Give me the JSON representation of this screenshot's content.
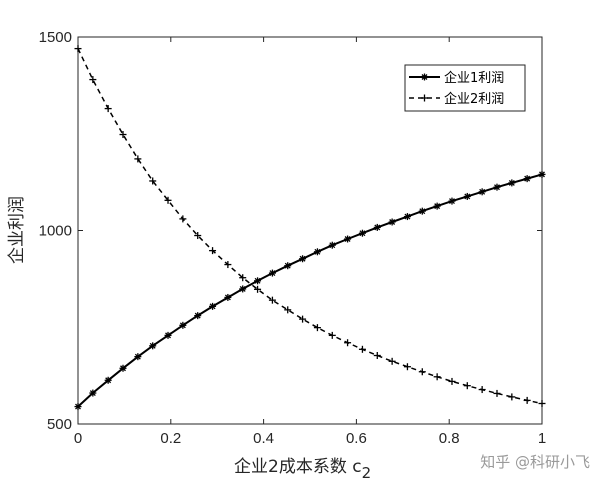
{
  "chart_data": {
    "type": "line",
    "xlabel": "企业2成本系数 c",
    "xlabel_subscript": "2",
    "ylabel": "企业利润",
    "xlim": [
      0,
      1
    ],
    "ylim": [
      500,
      1500
    ],
    "xticks": [
      0,
      0.2,
      0.4,
      0.6,
      0.8,
      1
    ],
    "xtick_labels": [
      "0",
      "0.2",
      "0.4",
      "0.6",
      "0.8",
      "1"
    ],
    "yticks": [
      500,
      1000,
      1500
    ],
    "ytick_labels": [
      "500",
      "1000",
      "1500"
    ],
    "legend_position": "top-right",
    "grid": false,
    "series": [
      {
        "name": "企业1利润",
        "style": "solid",
        "marker": "asterisk",
        "x": [
          0,
          0.032,
          0.065,
          0.097,
          0.129,
          0.161,
          0.194,
          0.226,
          0.258,
          0.29,
          0.323,
          0.355,
          0.387,
          0.419,
          0.452,
          0.484,
          0.516,
          0.548,
          0.581,
          0.613,
          0.645,
          0.677,
          0.71,
          0.742,
          0.774,
          0.806,
          0.839,
          0.871,
          0.903,
          0.935,
          0.968,
          1
        ],
        "y": [
          545,
          580,
          613,
          644,
          674,
          702,
          729,
          755,
          780,
          804,
          827,
          849,
          870,
          890,
          909,
          927,
          945,
          962,
          978,
          993,
          1008,
          1022,
          1036,
          1050,
          1063,
          1076,
          1088,
          1100,
          1112,
          1123,
          1134,
          1145
        ]
      },
      {
        "name": "企业2利润",
        "style": "dashed",
        "marker": "plus",
        "x": [
          0,
          0.032,
          0.065,
          0.097,
          0.129,
          0.161,
          0.194,
          0.226,
          0.258,
          0.29,
          0.323,
          0.355,
          0.387,
          0.419,
          0.452,
          0.484,
          0.516,
          0.548,
          0.581,
          0.613,
          0.645,
          0.677,
          0.71,
          0.742,
          0.774,
          0.806,
          0.839,
          0.871,
          0.903,
          0.935,
          0.968,
          1
        ],
        "y": [
          1470,
          1390,
          1315,
          1248,
          1185,
          1128,
          1078,
          1030,
          987,
          948,
          912,
          878,
          848,
          820,
          795,
          771,
          749,
          729,
          710,
          693,
          677,
          662,
          648,
          635,
          622,
          610,
          599,
          589,
          579,
          570,
          561,
          553
        ]
      }
    ]
  },
  "watermark": "知乎 @科研小飞"
}
